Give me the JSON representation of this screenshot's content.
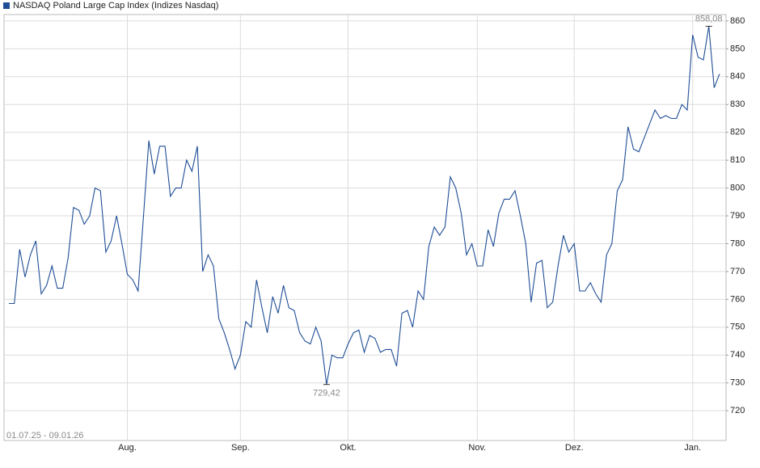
{
  "chart_data": {
    "type": "line",
    "title": "NASDAQ Poland Large Cap Index  (Indizes Nasdaq)",
    "date_range": "01.07.25 - 09.01.26",
    "categories": [
      null,
      null,
      null,
      null,
      null,
      null,
      null,
      null,
      null,
      null,
      null,
      null,
      null,
      null,
      null,
      null,
      null,
      null,
      null,
      null,
      null,
      null,
      "Aug.",
      null,
      null,
      null,
      null,
      null,
      null,
      null,
      null,
      null,
      null,
      null,
      null,
      null,
      null,
      null,
      null,
      null,
      null,
      null,
      null,
      "Sep.",
      null,
      null,
      null,
      null,
      null,
      null,
      null,
      null,
      null,
      null,
      null,
      null,
      null,
      null,
      null,
      null,
      null,
      null,
      null,
      "Okt.",
      null,
      null,
      null,
      null,
      null,
      null,
      null,
      null,
      null,
      null,
      null,
      null,
      null,
      null,
      null,
      null,
      null,
      null,
      null,
      null,
      null,
      null,
      null,
      "Nov.",
      null,
      null,
      null,
      null,
      null,
      null,
      null,
      null,
      null,
      null,
      null,
      null,
      null,
      null,
      null,
      null,
      null,
      "Dez.",
      null,
      null,
      null,
      null,
      null,
      null,
      null,
      null,
      null,
      null,
      null,
      null,
      null,
      null,
      null,
      null,
      null,
      null,
      null,
      null,
      null,
      "Jan.",
      null,
      null,
      null,
      null,
      null
    ],
    "series": [
      {
        "name": "NASDAQ Poland Large Cap Index  (Indizes Nasdaq)",
        "color": "#1f4e96",
        "values": [
          758.5,
          758.5,
          778,
          768,
          776,
          781,
          762,
          765,
          772,
          764,
          764,
          775,
          793,
          792,
          787,
          790,
          800,
          799,
          777,
          781,
          790,
          780,
          769,
          767,
          763,
          790,
          817,
          805,
          815,
          815,
          797,
          800,
          800,
          810,
          806,
          815,
          770,
          776,
          772,
          753,
          748,
          742,
          735,
          740,
          752,
          750,
          767,
          757,
          748,
          761,
          755,
          765,
          757,
          756,
          748,
          745,
          744,
          750,
          745,
          729.42,
          740,
          739,
          739,
          744,
          748,
          749,
          741,
          747,
          746,
          741,
          742,
          742,
          736,
          755,
          756,
          750,
          763,
          760,
          779,
          786,
          783,
          786,
          804,
          800,
          791,
          776,
          780,
          772,
          772,
          785,
          779,
          791,
          796,
          796,
          799,
          790,
          780,
          759,
          773,
          774,
          757,
          759,
          772,
          783,
          777,
          780,
          763,
          763,
          766,
          762,
          759,
          776,
          780,
          799,
          803,
          822,
          814,
          813,
          818,
          823,
          828,
          825,
          826,
          825,
          825,
          830,
          828,
          855,
          847,
          846,
          858.08,
          836,
          841
        ],
        "value_labels": [
          null,
          null,
          null,
          null,
          null,
          null,
          null,
          null,
          null,
          null,
          null,
          null,
          null,
          null,
          null,
          null,
          null,
          null,
          null,
          null,
          null,
          null,
          null,
          null,
          null,
          null,
          null,
          null,
          null,
          null,
          null,
          null,
          null,
          null,
          null,
          null,
          null,
          null,
          null,
          null,
          null,
          null,
          null,
          null,
          null,
          null,
          null,
          null,
          null,
          null,
          null,
          null,
          null,
          null,
          null,
          null,
          null,
          null,
          null,
          "729,42",
          null,
          null,
          null,
          null,
          null,
          null,
          null,
          null,
          null,
          null,
          null,
          null,
          null,
          null,
          null,
          null,
          null,
          null,
          null,
          null,
          null,
          null,
          null,
          null,
          null,
          null,
          null,
          null,
          null,
          null,
          null,
          null,
          null,
          null,
          null,
          null,
          null,
          null,
          null,
          null,
          null,
          null,
          null,
          null,
          null,
          null,
          null,
          null,
          null,
          null,
          null,
          null,
          null,
          null,
          null,
          null,
          null,
          null,
          null,
          null,
          null,
          null,
          null,
          null,
          null,
          null,
          null,
          null,
          null,
          null,
          "858,08",
          null,
          null
        ]
      }
    ],
    "ylim": [
      709.3,
      862.3
    ],
    "yticks": [
      720,
      730,
      740,
      750,
      760,
      770,
      780,
      790,
      800,
      810,
      820,
      830,
      840,
      850,
      860
    ],
    "grid": true
  }
}
